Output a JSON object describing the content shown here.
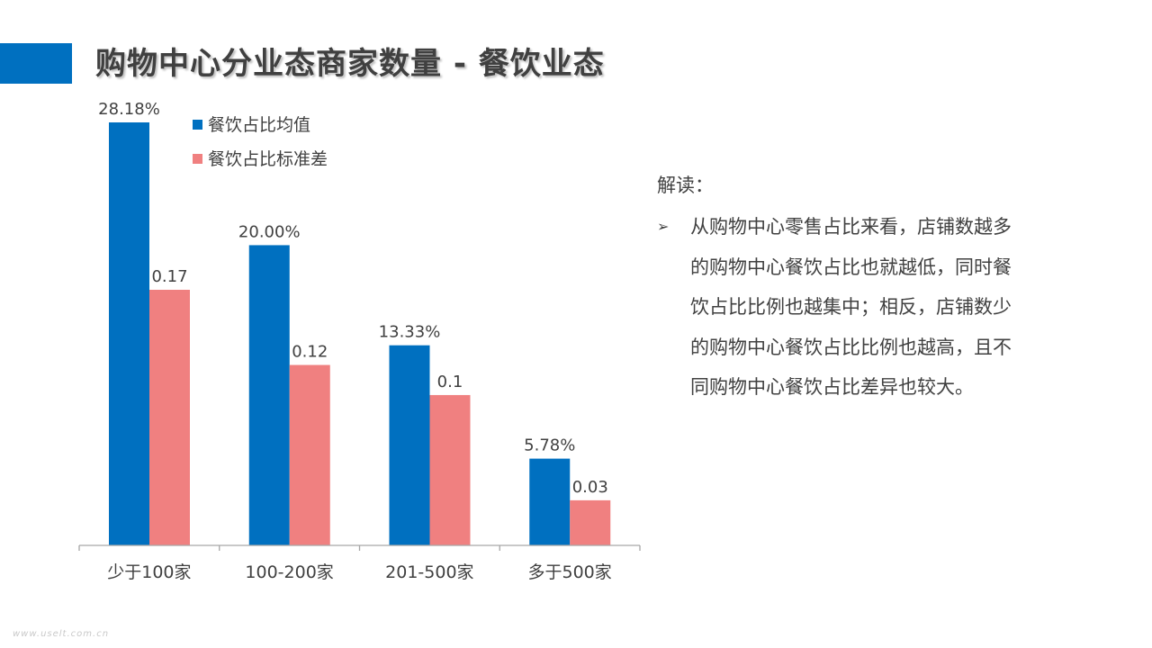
{
  "title": "购物中心分业态商家数量 - 餐饮业态",
  "colors": {
    "accent": "#0070C0",
    "series_mean": "#0070C0",
    "series_std": "#F08080",
    "axis": "#A6A6A6",
    "text": "#404040"
  },
  "chart_data": {
    "type": "bar",
    "categories": [
      "少于100家",
      "100-200家",
      "201-500家",
      "多于500家"
    ],
    "series": [
      {
        "name": "餐饮占比均值",
        "values": [
          28.18,
          20.0,
          13.33,
          5.78
        ],
        "labels": [
          "28.18%",
          "20.00%",
          "13.33%",
          "5.78%"
        ]
      },
      {
        "name": "餐饮占比标准差",
        "values": [
          0.17,
          0.12,
          0.1,
          0.03
        ],
        "labels": [
          "0.17",
          "0.12",
          "0.1",
          "0.03"
        ]
      }
    ],
    "title": "",
    "xlabel": "",
    "ylabel": "",
    "legend_position": "top-left",
    "grid": false
  },
  "interpretation": {
    "heading": "解读：",
    "bullet_icon": "arrow-bullet-icon",
    "bullet_glyph": "➢",
    "lines": [
      "从购物中心零售占比来看，店铺数越多",
      "的购物中心餐饮占比也就越低，同时餐",
      "饮占比比例也越集中；相反，店铺数少",
      "的购物中心餐饮占比比例也越高，且不",
      "同购物中心餐饮占比差异也较大。"
    ]
  },
  "watermark": "www.uselt.com.cn"
}
